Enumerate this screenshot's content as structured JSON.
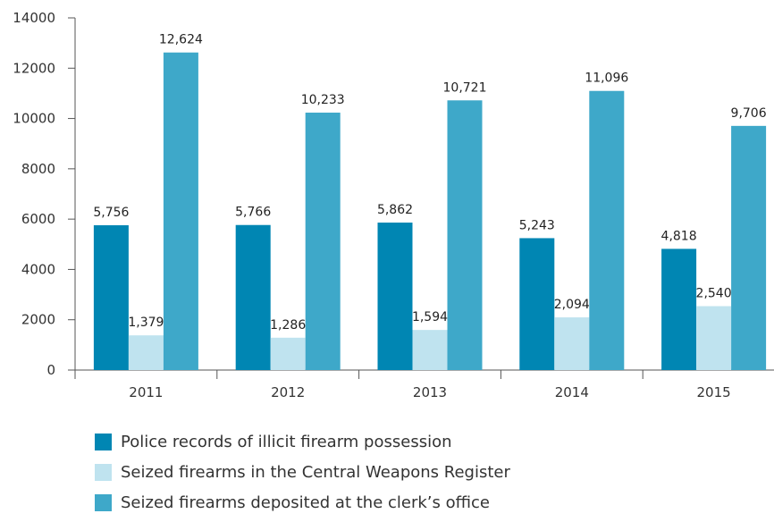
{
  "chart_data": {
    "type": "bar",
    "title": "",
    "xlabel": "",
    "ylabel": "",
    "categories": [
      "2011",
      "2012",
      "2013",
      "2014",
      "2015"
    ],
    "ylim": [
      0,
      14000
    ],
    "yticks": [
      0,
      2000,
      4000,
      6000,
      8000,
      10000,
      12000,
      14000
    ],
    "ytick_labels": [
      "0",
      "2000",
      "4000",
      "6000",
      "8000",
      "10000",
      "12000",
      "14000"
    ],
    "grid": false,
    "legend_position": "bottom",
    "series": [
      {
        "name": "Police records of illicit firearm possession",
        "color": "#0086b3",
        "values": [
          5756,
          5766,
          5862,
          5243,
          4818
        ],
        "labels": [
          "5,756",
          "5,766",
          "5,862",
          "5,243",
          "4,818"
        ]
      },
      {
        "name": "Seized firearms in the Central Weapons Register",
        "color": "#bfe3ef",
        "values": [
          1379,
          1286,
          1594,
          2094,
          2540
        ],
        "labels": [
          "1,379",
          "1,286",
          "1,594",
          "2,094",
          "2,540"
        ]
      },
      {
        "name": "Seized firearms deposited at the clerk’s office",
        "color": "#3ea8c9",
        "values": [
          12624,
          10233,
          10721,
          11096,
          9706
        ],
        "labels": [
          "12,624",
          "10,233",
          "10,721",
          "11,096",
          "9,706"
        ]
      }
    ]
  }
}
